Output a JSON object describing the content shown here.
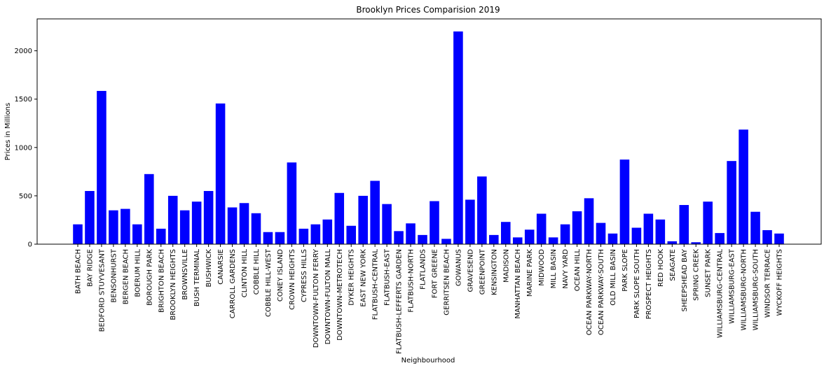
{
  "chart_data": {
    "type": "bar",
    "title": "Brooklyn Prices Comparision 2019",
    "xlabel": "Neighbourhood",
    "ylabel": "Prices in Millions",
    "ylim": [
      0,
      2330
    ],
    "yticks": [
      0,
      500,
      1000,
      1500,
      2000
    ],
    "grid": false,
    "bar_color": "#0000ff",
    "categories": [
      "BATH BEACH",
      "BAY RIDGE",
      "BEDFORD STUYVESANT",
      "BENSONHURST",
      "BERGEN BEACH",
      "BOERUM HILL",
      "BOROUGH PARK",
      "BRIGHTON BEACH",
      "BROOKLYN HEIGHTS",
      "BROWNSVILLE",
      "BUSH TERMINAL",
      "BUSHWICK",
      "CANARSIE",
      "CARROLL GARDENS",
      "CLINTON HILL",
      "COBBLE HILL",
      "COBBLE HILL-WEST",
      "CONEY ISLAND",
      "CROWN HEIGHTS",
      "CYPRESS HILLS",
      "DOWNTOWN-FULTON FERRY",
      "DOWNTOWN-FULTON MALL",
      "DOWNTOWN-METROTECH",
      "DYKER HEIGHTS",
      "EAST NEW YORK",
      "FLATBUSH-CENTRAL",
      "FLATBUSH-EAST",
      "FLATBUSH-LEFFERTS GARDEN",
      "FLATBUSH-NORTH",
      "FLATLANDS",
      "FORT GREENE",
      "GERRITSEN BEACH",
      "GOWANUS",
      "GRAVESEND",
      "GREENPOINT",
      "KENSINGTON",
      "MADISON",
      "MANHATTAN BEACH",
      "MARINE PARK",
      "MIDWOOD",
      "MILL BASIN",
      "NAVY YARD",
      "OCEAN HILL",
      "OCEAN PARKWAY-NORTH",
      "OCEAN PARKWAY-SOUTH",
      "OLD MILL BASIN",
      "PARK SLOPE",
      "PARK SLOPE SOUTH",
      "PROSPECT HEIGHTS",
      "RED HOOK",
      "SEAGATE",
      "SHEEPSHEAD BAY",
      "SPRING CREEK",
      "SUNSET PARK",
      "WILLIAMSBURG-CENTRAL",
      "WILLIAMSBURG-EAST",
      "WILLIAMSBURG-NORTH",
      "WILLIAMSBURG-SOUTH",
      "WINDSOR TERRACE",
      "WYCKOFF HEIGHTS"
    ],
    "values": [
      205,
      550,
      1585,
      350,
      365,
      205,
      725,
      160,
      500,
      350,
      440,
      550,
      1455,
      380,
      425,
      320,
      125,
      125,
      845,
      160,
      205,
      255,
      530,
      190,
      500,
      655,
      415,
      135,
      215,
      95,
      445,
      55,
      2200,
      460,
      700,
      95,
      230,
      70,
      150,
      315,
      70,
      205,
      340,
      475,
      220,
      110,
      875,
      170,
      315,
      255,
      30,
      405,
      20,
      440,
      115,
      860,
      1185,
      335,
      145,
      110
    ]
  }
}
